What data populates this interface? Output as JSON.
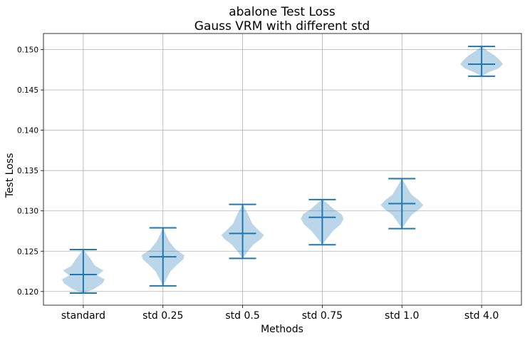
{
  "chart_data": {
    "type": "violin",
    "title": "abalone Test Loss",
    "subtitle": "Gauss VRM with different std",
    "xlabel": "Methods",
    "ylabel": "Test Loss",
    "ylim": [
      0.1183,
      0.152
    ],
    "yticks": [
      "0.120",
      "0.125",
      "0.130",
      "0.135",
      "0.140",
      "0.145",
      "0.150"
    ],
    "grid": true,
    "categories": [
      "standard",
      "std 0.25",
      "std 0.5",
      "std 0.75",
      "std 1.0",
      "std 4.0"
    ],
    "series": [
      {
        "min": 0.1198,
        "max": 0.1252,
        "median": 0.1221,
        "profile": [
          [
            0.1198,
            0.0
          ],
          [
            0.1203,
            0.5
          ],
          [
            0.121,
            0.9
          ],
          [
            0.1215,
            1.0
          ],
          [
            0.122,
            0.65
          ],
          [
            0.1226,
            0.95
          ],
          [
            0.1232,
            0.55
          ],
          [
            0.1242,
            0.3
          ],
          [
            0.1252,
            0.0
          ]
        ]
      },
      {
        "min": 0.1207,
        "max": 0.1279,
        "median": 0.1243,
        "profile": [
          [
            0.1207,
            0.0
          ],
          [
            0.1215,
            0.15
          ],
          [
            0.1225,
            0.35
          ],
          [
            0.1233,
            0.65
          ],
          [
            0.124,
            0.95
          ],
          [
            0.1245,
            1.0
          ],
          [
            0.1252,
            0.6
          ],
          [
            0.1262,
            0.3
          ],
          [
            0.127,
            0.15
          ],
          [
            0.1279,
            0.0
          ]
        ]
      },
      {
        "min": 0.1241,
        "max": 0.1308,
        "median": 0.1272,
        "profile": [
          [
            0.1241,
            0.0
          ],
          [
            0.125,
            0.25
          ],
          [
            0.1258,
            0.5
          ],
          [
            0.1265,
            0.85
          ],
          [
            0.127,
            1.0
          ],
          [
            0.1276,
            0.75
          ],
          [
            0.1284,
            0.45
          ],
          [
            0.1296,
            0.25
          ],
          [
            0.1308,
            0.0
          ]
        ]
      },
      {
        "min": 0.1258,
        "max": 0.1314,
        "median": 0.1292,
        "profile": [
          [
            0.1258,
            0.0
          ],
          [
            0.1265,
            0.2
          ],
          [
            0.1275,
            0.5
          ],
          [
            0.1283,
            0.85
          ],
          [
            0.129,
            1.0
          ],
          [
            0.1296,
            0.9
          ],
          [
            0.1302,
            0.55
          ],
          [
            0.1309,
            0.25
          ],
          [
            0.1314,
            0.0
          ]
        ]
      },
      {
        "min": 0.1278,
        "max": 0.134,
        "median": 0.1309,
        "profile": [
          [
            0.1278,
            0.0
          ],
          [
            0.1286,
            0.2
          ],
          [
            0.1295,
            0.45
          ],
          [
            0.1302,
            0.8
          ],
          [
            0.1307,
            1.0
          ],
          [
            0.1313,
            0.8
          ],
          [
            0.132,
            0.45
          ],
          [
            0.133,
            0.22
          ],
          [
            0.134,
            0.0
          ]
        ]
      },
      {
        "min": 0.1467,
        "max": 0.1504,
        "median": 0.1482,
        "profile": [
          [
            0.1467,
            0.0
          ],
          [
            0.1472,
            0.35
          ],
          [
            0.1477,
            0.8
          ],
          [
            0.1482,
            1.0
          ],
          [
            0.1487,
            0.85
          ],
          [
            0.1493,
            0.6
          ],
          [
            0.1498,
            0.3
          ],
          [
            0.1504,
            0.0
          ]
        ]
      }
    ]
  }
}
